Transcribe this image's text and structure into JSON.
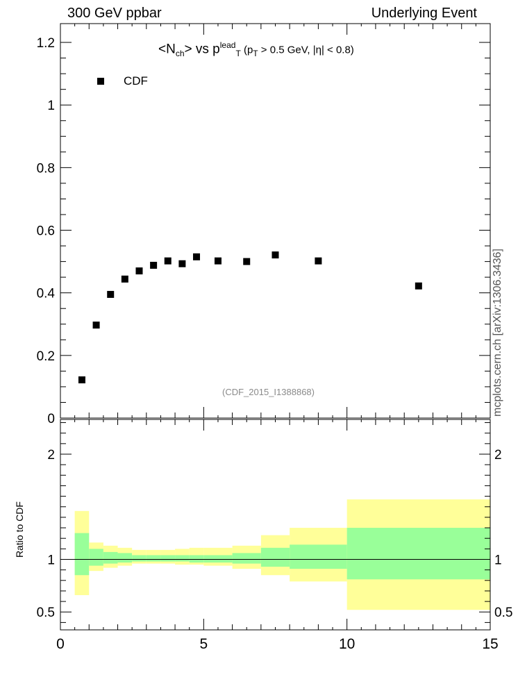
{
  "header": {
    "left_text": "300 GeV ppbar",
    "right_text": "Underlying Event"
  },
  "side_note": "mcplots.cern.ch [arXiv:1306.3436]",
  "chart_data": [
    {
      "type": "scatter",
      "title": {
        "main_pre": "<N",
        "main_sub": "ch",
        "main_mid": "> vs p",
        "main_sup": "lead",
        "main_sub2": "T",
        "cut_pre": " (p",
        "cut_sub": "T",
        "cut_post": " > 0.5 GeV, |η| < 0.8)"
      },
      "annotation": "(CDF_2015_I1388868)",
      "legend": {
        "placement": "top-left",
        "entries": [
          "CDF"
        ]
      },
      "xlim": [
        0,
        15
      ],
      "ylim": [
        0,
        1.26
      ],
      "x_ticks": [
        0,
        5,
        10,
        15
      ],
      "y_ticks": [
        {
          "v": 0.2,
          "label": "0.2"
        },
        {
          "v": 0.4,
          "label": "0.4"
        },
        {
          "v": 0.6,
          "label": "0.6"
        },
        {
          "v": 0.8,
          "label": "0.8"
        },
        {
          "v": 1.0,
          "label": "1"
        },
        {
          "v": 1.2,
          "label": "1.2"
        },
        {
          "v": 0.0,
          "label": "0"
        }
      ],
      "series": [
        {
          "name": "CDF",
          "x": [
            0.75,
            1.25,
            1.75,
            2.25,
            2.75,
            3.25,
            3.75,
            4.25,
            4.75,
            5.5,
            6.5,
            7.5,
            9.0,
            12.5
          ],
          "y": [
            0.122,
            0.297,
            0.395,
            0.444,
            0.47,
            0.488,
            0.502,
            0.493,
            0.515,
            0.502,
            0.5,
            0.521,
            0.502,
            0.422
          ]
        }
      ]
    },
    {
      "type": "area",
      "ylabel": "Ratio to CDF",
      "xlim": [
        0,
        15
      ],
      "ylim": [
        0.33,
        2.33
      ],
      "x_ticks": [
        {
          "v": 0,
          "label": "0"
        },
        {
          "v": 5,
          "label": "5"
        },
        {
          "v": 10,
          "label": "10"
        },
        {
          "v": 15,
          "label": "15"
        }
      ],
      "y_ticks": [
        {
          "v": 0.5,
          "label": "0.5"
        },
        {
          "v": 1.0,
          "label": "1"
        },
        {
          "v": 2.0,
          "label": "2"
        }
      ],
      "reference_line": 1.0,
      "bins": [
        {
          "x0": 0.5,
          "x1": 1.0,
          "inner": [
            0.85,
            1.25
          ],
          "outer": [
            0.66,
            1.46
          ]
        },
        {
          "x0": 1.0,
          "x1": 1.5,
          "inner": [
            0.94,
            1.1
          ],
          "outer": [
            0.89,
            1.16
          ]
        },
        {
          "x0": 1.5,
          "x1": 2.0,
          "inner": [
            0.96,
            1.07
          ],
          "outer": [
            0.92,
            1.13
          ]
        },
        {
          "x0": 2.0,
          "x1": 2.5,
          "inner": [
            0.97,
            1.06
          ],
          "outer": [
            0.94,
            1.11
          ]
        },
        {
          "x0": 2.5,
          "x1": 3.0,
          "inner": [
            0.98,
            1.04
          ],
          "outer": [
            0.96,
            1.09
          ]
        },
        {
          "x0": 3.0,
          "x1": 3.5,
          "inner": [
            0.98,
            1.04
          ],
          "outer": [
            0.96,
            1.09
          ]
        },
        {
          "x0": 3.5,
          "x1": 4.0,
          "inner": [
            0.98,
            1.04
          ],
          "outer": [
            0.96,
            1.09
          ]
        },
        {
          "x0": 4.0,
          "x1": 4.5,
          "inner": [
            0.98,
            1.04
          ],
          "outer": [
            0.95,
            1.1
          ]
        },
        {
          "x0": 4.5,
          "x1": 5.0,
          "inner": [
            0.97,
            1.04
          ],
          "outer": [
            0.95,
            1.11
          ]
        },
        {
          "x0": 5.0,
          "x1": 6.0,
          "inner": [
            0.97,
            1.04
          ],
          "outer": [
            0.94,
            1.11
          ]
        },
        {
          "x0": 6.0,
          "x1": 7.0,
          "inner": [
            0.96,
            1.06
          ],
          "outer": [
            0.91,
            1.13
          ]
        },
        {
          "x0": 7.0,
          "x1": 8.0,
          "inner": [
            0.93,
            1.11
          ],
          "outer": [
            0.85,
            1.23
          ]
        },
        {
          "x0": 8.0,
          "x1": 10.0,
          "inner": [
            0.91,
            1.14
          ],
          "outer": [
            0.79,
            1.3
          ]
        },
        {
          "x0": 10.0,
          "x1": 15.0,
          "inner": [
            0.81,
            1.3
          ],
          "outer": [
            0.52,
            1.57
          ]
        }
      ]
    }
  ],
  "colors": {
    "marker": "#000000",
    "band_inner": "#99ff99",
    "band_outer": "#ffff99",
    "watermark": "#8a8a8a"
  }
}
